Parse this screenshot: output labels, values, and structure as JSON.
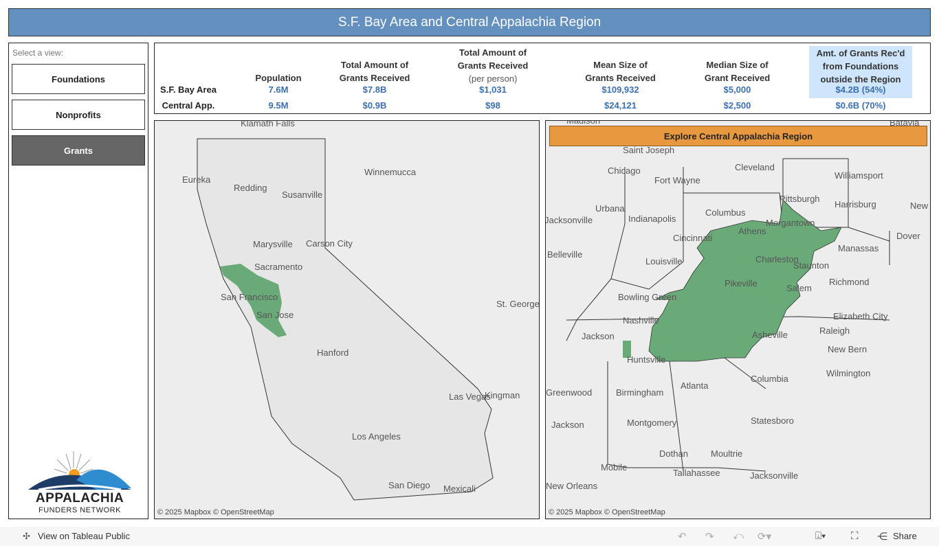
{
  "title": "S.F. Bay Area and Central Appalachia Region",
  "sidebar": {
    "select_label": "Select a view:",
    "views": [
      {
        "label": "Foundations",
        "active": false
      },
      {
        "label": "Nonprofits",
        "active": false
      },
      {
        "label": "Grants",
        "active": true
      }
    ],
    "logo": {
      "line1": "APPALACHIA",
      "line2": "FUNDERS NETWORK"
    }
  },
  "stats": {
    "headers": [
      "Population",
      "Total Amount of Grants Received",
      "Total Amount of Grants Received",
      "(per person)",
      "Mean Size of Grants Received",
      "Median Size of Grant Received",
      "Amt. of Grants Rec'd from Foundations outside the Region"
    ],
    "rows": [
      {
        "label": "S.F. Bay Area",
        "values": [
          "7.6M",
          "$7.8B",
          "$1,031",
          "$109,932",
          "$5,000",
          "$4.2B (54%)"
        ]
      },
      {
        "label": "Central App.",
        "values": [
          "9.5M",
          "$0.9B",
          "$98",
          "$24,121",
          "$2,500",
          "$0.6B (70%)"
        ]
      }
    ]
  },
  "map_left": {
    "cities": [
      "Klamath Falls",
      "Eureka",
      "Redding",
      "Susanville",
      "Winnemucca",
      "Marysville",
      "Carson City",
      "Sacramento",
      "San Francisco",
      "San Jose",
      "Hanford",
      "St. George",
      "Las Vegas",
      "Kingman",
      "Los Angeles",
      "San Diego",
      "Mexicali"
    ],
    "copyright": "© 2025 Mapbox  © OpenStreetMap"
  },
  "map_right": {
    "button": "Explore Central Appalachia Region",
    "cities": [
      "Madison",
      "Batavia",
      "Saint Joseph",
      "Chicago",
      "Cleveland",
      "Fort Wayne",
      "Williamsport",
      "Urbana",
      "Pittsburgh",
      "Harrisburg",
      "New",
      "Jacksonville",
      "Indianapolis",
      "Columbus",
      "Morgantown",
      "Cincinnati",
      "Athens",
      "Dover",
      "Belleville",
      "Louisville",
      "Charleston",
      "Staunton",
      "Manassas",
      "Richmond",
      "Pikeville",
      "Salem",
      "Bowling Green",
      "Nashville",
      "Elizabeth City",
      "Jackson",
      "Asheville",
      "Raleigh",
      "Huntsville",
      "New Bern",
      "Columbia",
      "Wilmington",
      "Greenwood",
      "Birmingham",
      "Atlanta",
      "Jackson",
      "Montgomery",
      "Statesboro",
      "Dothan",
      "Moultrie",
      "Mobile",
      "Tallahassee",
      "Jacksonville",
      "New Orleans"
    ],
    "copyright": "© 2025 Mapbox  © OpenStreetMap"
  },
  "colors": {
    "region": "#6aaa78",
    "header": "#6490bf",
    "highlight": "#cfe5fb",
    "value": "#3b6fb0",
    "explore": "#e8993f"
  },
  "toolbar": {
    "view_on": "View on Tableau Public",
    "share": "Share"
  }
}
